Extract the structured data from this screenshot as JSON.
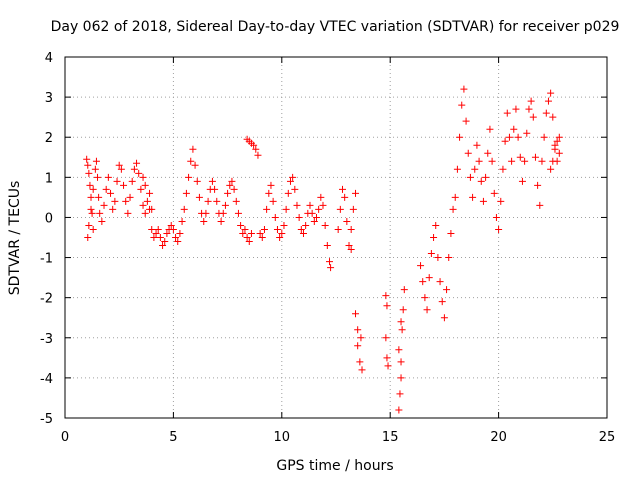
{
  "chart_data": {
    "type": "scatter",
    "title": "Day 062 of 2018, Sidereal Day-to-day VTEC variation (SDTVAR) for receiver p029",
    "xlabel": "GPS time / hours",
    "ylabel": "SDTVAR / TECUs",
    "xlim": [
      0,
      25
    ],
    "ylim": [
      -5,
      4
    ],
    "x_ticks": [
      0,
      5,
      10,
      15,
      20,
      25
    ],
    "y_ticks": [
      -5,
      -4,
      -3,
      -2,
      -1,
      0,
      1,
      2,
      3,
      4
    ],
    "x_tick_labels": [
      "0",
      "5",
      "10",
      "15",
      "20",
      "25"
    ],
    "y_tick_labels": [
      "-5",
      "-4",
      "-3",
      "-2",
      "-1",
      "0",
      "1",
      "2",
      "3",
      "4"
    ],
    "grid": true,
    "marker": "+",
    "marker_color": "#ff0000",
    "series": [
      {
        "name": "SDTVAR",
        "points": [
          [
            1.0,
            1.45
          ],
          [
            1.05,
            1.3
          ],
          [
            1.1,
            1.1
          ],
          [
            1.15,
            0.8
          ],
          [
            1.2,
            0.5
          ],
          [
            1.25,
            0.1
          ],
          [
            1.3,
            -0.3
          ],
          [
            1.05,
            -0.5
          ],
          [
            1.1,
            -0.2
          ],
          [
            1.2,
            0.2
          ],
          [
            1.3,
            0.7
          ],
          [
            1.4,
            1.2
          ],
          [
            1.45,
            1.4
          ],
          [
            1.5,
            1.0
          ],
          [
            1.55,
            0.5
          ],
          [
            1.6,
            0.1
          ],
          [
            1.7,
            -0.1
          ],
          [
            1.8,
            0.3
          ],
          [
            1.9,
            0.7
          ],
          [
            2.0,
            1.0
          ],
          [
            2.1,
            0.6
          ],
          [
            2.2,
            0.2
          ],
          [
            2.3,
            0.4
          ],
          [
            2.4,
            0.9
          ],
          [
            2.5,
            1.3
          ],
          [
            2.6,
            1.2
          ],
          [
            2.7,
            0.8
          ],
          [
            2.8,
            0.4
          ],
          [
            2.9,
            0.1
          ],
          [
            3.0,
            0.5
          ],
          [
            3.1,
            0.9
          ],
          [
            3.2,
            1.2
          ],
          [
            3.3,
            1.35
          ],
          [
            3.4,
            1.1
          ],
          [
            3.5,
            0.7
          ],
          [
            3.6,
            0.3
          ],
          [
            3.7,
            0.1
          ],
          [
            3.8,
            0.4
          ],
          [
            3.9,
            0.6
          ],
          [
            4.0,
            0.2
          ],
          [
            3.6,
            1.0
          ],
          [
            3.7,
            0.8
          ],
          [
            3.9,
            0.2
          ],
          [
            4.0,
            -0.3
          ],
          [
            4.1,
            -0.5
          ],
          [
            4.2,
            -0.4
          ],
          [
            4.3,
            -0.3
          ],
          [
            4.4,
            -0.5
          ],
          [
            4.5,
            -0.7
          ],
          [
            4.6,
            -0.6
          ],
          [
            4.7,
            -0.4
          ],
          [
            4.8,
            -0.3
          ],
          [
            4.9,
            -0.2
          ],
          [
            5.0,
            -0.3
          ],
          [
            5.1,
            -0.5
          ],
          [
            5.2,
            -0.6
          ],
          [
            5.3,
            -0.4
          ],
          [
            5.4,
            -0.1
          ],
          [
            5.5,
            0.2
          ],
          [
            5.6,
            0.6
          ],
          [
            5.7,
            1.0
          ],
          [
            5.8,
            1.4
          ],
          [
            5.9,
            1.7
          ],
          [
            6.0,
            1.3
          ],
          [
            6.1,
            0.9
          ],
          [
            6.2,
            0.5
          ],
          [
            6.3,
            0.1
          ],
          [
            6.4,
            -0.1
          ],
          [
            6.5,
            0.1
          ],
          [
            6.6,
            0.4
          ],
          [
            6.7,
            0.7
          ],
          [
            6.8,
            0.9
          ],
          [
            6.9,
            0.7
          ],
          [
            7.0,
            0.4
          ],
          [
            7.1,
            0.1
          ],
          [
            7.2,
            -0.1
          ],
          [
            7.3,
            0.1
          ],
          [
            7.4,
            0.3
          ],
          [
            7.5,
            0.6
          ],
          [
            7.6,
            0.8
          ],
          [
            7.7,
            0.9
          ],
          [
            7.8,
            0.7
          ],
          [
            7.9,
            0.4
          ],
          [
            8.0,
            0.1
          ],
          [
            8.1,
            -0.2
          ],
          [
            8.2,
            -0.4
          ],
          [
            8.3,
            -0.3
          ],
          [
            8.4,
            -0.5
          ],
          [
            8.5,
            -0.6
          ],
          [
            8.6,
            -0.4
          ],
          [
            8.4,
            1.95
          ],
          [
            8.5,
            1.9
          ],
          [
            8.6,
            1.85
          ],
          [
            8.7,
            1.8
          ],
          [
            8.8,
            1.7
          ],
          [
            8.9,
            1.55
          ],
          [
            9.0,
            -0.4
          ],
          [
            9.1,
            -0.5
          ],
          [
            9.2,
            -0.3
          ],
          [
            9.3,
            0.2
          ],
          [
            9.4,
            0.6
          ],
          [
            9.5,
            0.8
          ],
          [
            9.6,
            0.4
          ],
          [
            9.7,
            0.0
          ],
          [
            9.8,
            -0.3
          ],
          [
            9.9,
            -0.5
          ],
          [
            10.0,
            -0.4
          ],
          [
            10.1,
            -0.2
          ],
          [
            10.2,
            0.2
          ],
          [
            10.3,
            0.6
          ],
          [
            10.4,
            0.9
          ],
          [
            10.5,
            1.0
          ],
          [
            10.6,
            0.7
          ],
          [
            10.7,
            0.3
          ],
          [
            10.8,
            0.0
          ],
          [
            10.9,
            -0.3
          ],
          [
            11.0,
            -0.4
          ],
          [
            11.1,
            -0.2
          ],
          [
            11.2,
            0.1
          ],
          [
            11.3,
            0.3
          ],
          [
            11.4,
            0.1
          ],
          [
            11.5,
            -0.1
          ],
          [
            11.6,
            0.0
          ],
          [
            11.7,
            0.2
          ],
          [
            11.8,
            0.5
          ],
          [
            11.9,
            0.3
          ],
          [
            12.0,
            -0.2
          ],
          [
            12.1,
            -0.7
          ],
          [
            12.2,
            -1.1
          ],
          [
            12.25,
            -1.25
          ],
          [
            12.6,
            -0.3
          ],
          [
            12.7,
            0.2
          ],
          [
            12.8,
            0.7
          ],
          [
            12.9,
            0.5
          ],
          [
            13.0,
            -0.1
          ],
          [
            13.1,
            -0.7
          ],
          [
            13.2,
            -0.3
          ],
          [
            13.3,
            0.2
          ],
          [
            13.4,
            0.6
          ],
          [
            13.2,
            -0.8
          ],
          [
            13.4,
            -2.4
          ],
          [
            13.5,
            -2.8
          ],
          [
            13.5,
            -3.2
          ],
          [
            13.6,
            -3.6
          ],
          [
            13.7,
            -3.8
          ],
          [
            13.65,
            -3.0
          ],
          [
            14.8,
            -1.95
          ],
          [
            14.85,
            -2.2
          ],
          [
            14.8,
            -3.0
          ],
          [
            14.85,
            -3.5
          ],
          [
            14.9,
            -3.7
          ],
          [
            15.4,
            -4.8
          ],
          [
            15.45,
            -4.4
          ],
          [
            15.5,
            -4.0
          ],
          [
            15.5,
            -3.6
          ],
          [
            15.55,
            -2.8
          ],
          [
            15.6,
            -2.3
          ],
          [
            15.65,
            -1.8
          ],
          [
            15.4,
            -3.3
          ],
          [
            15.5,
            -2.6
          ],
          [
            16.4,
            -1.2
          ],
          [
            16.5,
            -1.6
          ],
          [
            16.6,
            -2.0
          ],
          [
            16.7,
            -2.3
          ],
          [
            16.8,
            -1.5
          ],
          [
            16.9,
            -0.9
          ],
          [
            17.0,
            -0.5
          ],
          [
            17.1,
            -0.2
          ],
          [
            17.2,
            -1.0
          ],
          [
            17.3,
            -1.6
          ],
          [
            17.4,
            -2.1
          ],
          [
            17.5,
            -2.5
          ],
          [
            17.6,
            -1.8
          ],
          [
            17.7,
            -1.0
          ],
          [
            17.8,
            -0.4
          ],
          [
            17.9,
            0.2
          ],
          [
            18.0,
            0.5
          ],
          [
            18.1,
            1.2
          ],
          [
            18.2,
            2.0
          ],
          [
            18.3,
            2.8
          ],
          [
            18.4,
            3.2
          ],
          [
            18.5,
            2.4
          ],
          [
            18.6,
            1.6
          ],
          [
            18.7,
            1.0
          ],
          [
            18.8,
            0.5
          ],
          [
            18.9,
            1.2
          ],
          [
            19.0,
            1.8
          ],
          [
            19.1,
            1.4
          ],
          [
            19.2,
            0.9
          ],
          [
            19.3,
            0.4
          ],
          [
            19.4,
            1.0
          ],
          [
            19.5,
            1.6
          ],
          [
            19.6,
            2.2
          ],
          [
            19.7,
            1.4
          ],
          [
            19.8,
            0.6
          ],
          [
            19.9,
            0.0
          ],
          [
            20.0,
            -0.3
          ],
          [
            20.1,
            0.4
          ],
          [
            20.2,
            1.2
          ],
          [
            20.3,
            1.9
          ],
          [
            20.4,
            2.6
          ],
          [
            20.5,
            2.0
          ],
          [
            20.6,
            1.4
          ],
          [
            20.7,
            2.2
          ],
          [
            20.8,
            2.7
          ],
          [
            20.9,
            2.0
          ],
          [
            21.0,
            1.5
          ],
          [
            21.1,
            0.9
          ],
          [
            21.2,
            1.4
          ],
          [
            21.3,
            2.1
          ],
          [
            21.4,
            2.7
          ],
          [
            21.5,
            2.9
          ],
          [
            21.6,
            2.5
          ],
          [
            21.7,
            1.5
          ],
          [
            21.8,
            0.8
          ],
          [
            21.9,
            0.3
          ],
          [
            22.0,
            1.4
          ],
          [
            22.1,
            2.0
          ],
          [
            22.2,
            2.6
          ],
          [
            22.3,
            2.9
          ],
          [
            22.4,
            3.1
          ],
          [
            22.5,
            2.5
          ],
          [
            22.6,
            1.8
          ],
          [
            22.7,
            1.4
          ],
          [
            22.8,
            1.6
          ],
          [
            22.4,
            1.2
          ],
          [
            22.5,
            1.4
          ],
          [
            22.6,
            1.7
          ],
          [
            22.7,
            1.9
          ],
          [
            22.8,
            2.0
          ]
        ]
      }
    ]
  }
}
